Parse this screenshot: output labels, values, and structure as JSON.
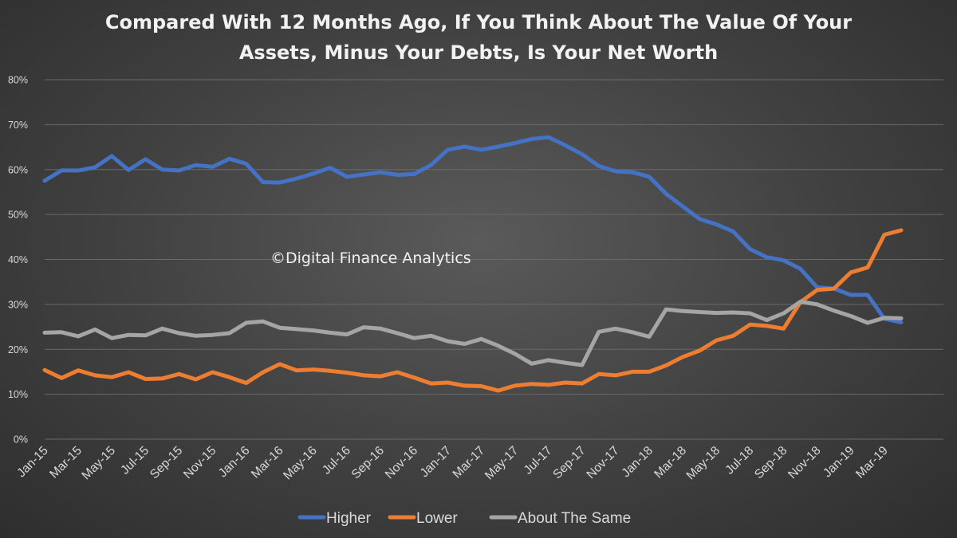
{
  "chart_data": {
    "type": "line",
    "title_lines": [
      "Compared With 12 Months Ago, If You Think About The Value Of Your",
      "Assets, Minus Your Debts, Is Your Net Worth"
    ],
    "watermark": "©Digital Finance Analytics",
    "ylim": [
      0,
      80
    ],
    "y_ticks": [
      0,
      10,
      20,
      30,
      40,
      50,
      60,
      70,
      80
    ],
    "y_tick_labels": [
      "0%",
      "10%",
      "20%",
      "30%",
      "40%",
      "50%",
      "60%",
      "70%",
      "80%"
    ],
    "x": [
      "Jan-15",
      "Feb-15",
      "Mar-15",
      "Apr-15",
      "May-15",
      "Jun-15",
      "Jul-15",
      "Aug-15",
      "Sep-15",
      "Oct-15",
      "Nov-15",
      "Dec-15",
      "Jan-16",
      "Feb-16",
      "Mar-16",
      "Apr-16",
      "May-16",
      "Jun-16",
      "Jul-16",
      "Aug-16",
      "Sep-16",
      "Oct-16",
      "Nov-16",
      "Dec-16",
      "Jan-17",
      "Feb-17",
      "Mar-17",
      "Apr-17",
      "May-17",
      "Jun-17",
      "Jul-17",
      "Aug-17",
      "Sep-17",
      "Oct-17",
      "Nov-17",
      "Dec-17",
      "Jan-18",
      "Feb-18",
      "Mar-18",
      "Apr-18",
      "May-18",
      "Jun-18",
      "Jul-18",
      "Aug-18",
      "Sep-18",
      "Oct-18",
      "Nov-18",
      "Dec-18",
      "Jan-19",
      "Feb-19",
      "Mar-19",
      "Apr-19"
    ],
    "x_tick_labels": [
      "Jan-15",
      "Mar-15",
      "May-15",
      "Jul-15",
      "Sep-15",
      "Nov-15",
      "Jan-16",
      "Mar-16",
      "May-16",
      "Jul-16",
      "Sep-16",
      "Nov-16",
      "Jan-17",
      "Mar-17",
      "May-17",
      "Jul-17",
      "Sep-17",
      "Nov-17",
      "Jan-18",
      "Mar-18",
      "May-18",
      "Jul-18",
      "Sep-18",
      "Nov-18",
      "Jan-19",
      "Mar-19"
    ],
    "grid": true,
    "legend": "bottom",
    "series": [
      {
        "name": "Higher",
        "color": "#4472c4",
        "values": [
          57.5,
          59.8,
          59.8,
          60.5,
          63.0,
          59.9,
          62.3,
          60.0,
          59.8,
          61.0,
          60.6,
          62.4,
          61.3,
          57.2,
          57.1,
          58.0,
          59.1,
          60.4,
          58.4,
          58.9,
          59.4,
          58.8,
          59.0,
          61.0,
          64.4,
          65.1,
          64.4,
          65.1,
          65.9,
          66.8,
          67.2,
          65.4,
          63.4,
          60.8,
          59.6,
          59.4,
          58.4,
          54.6,
          51.8,
          49.0,
          47.8,
          46.2,
          42.3,
          40.5,
          39.8,
          37.9,
          33.8,
          33.5,
          32.1,
          32.1,
          26.8,
          26.0
        ]
      },
      {
        "name": "Lower",
        "color": "#ed7d31",
        "values": [
          15.4,
          13.6,
          15.3,
          14.2,
          13.8,
          14.9,
          13.4,
          13.5,
          14.5,
          13.3,
          14.9,
          13.8,
          12.5,
          14.9,
          16.7,
          15.3,
          15.5,
          15.2,
          14.8,
          14.2,
          14.0,
          14.9,
          13.7,
          12.4,
          12.6,
          11.9,
          11.8,
          10.8,
          11.9,
          12.3,
          12.1,
          12.6,
          12.4,
          14.5,
          14.2,
          15.0,
          15.0,
          16.4,
          18.3,
          19.7,
          22.0,
          23.0,
          25.5,
          25.2,
          24.6,
          30.5,
          33.2,
          33.5,
          37.1,
          38.2,
          45.5,
          46.5
        ]
      },
      {
        "name": "About The Same",
        "color": "#a5a5a5",
        "values": [
          23.7,
          23.8,
          22.9,
          24.4,
          22.5,
          23.2,
          23.1,
          24.6,
          23.6,
          23.0,
          23.2,
          23.6,
          25.9,
          26.2,
          24.8,
          24.5,
          24.2,
          23.7,
          23.3,
          24.9,
          24.6,
          23.6,
          22.5,
          23.0,
          21.8,
          21.2,
          22.3,
          20.8,
          19.0,
          16.8,
          17.6,
          17.0,
          16.5,
          23.9,
          24.6,
          23.8,
          22.8,
          28.9,
          28.5,
          28.3,
          28.1,
          28.2,
          28.0,
          26.5,
          28.0,
          30.6,
          30.0,
          28.6,
          27.4,
          25.9,
          27.0,
          26.9
        ]
      }
    ]
  }
}
